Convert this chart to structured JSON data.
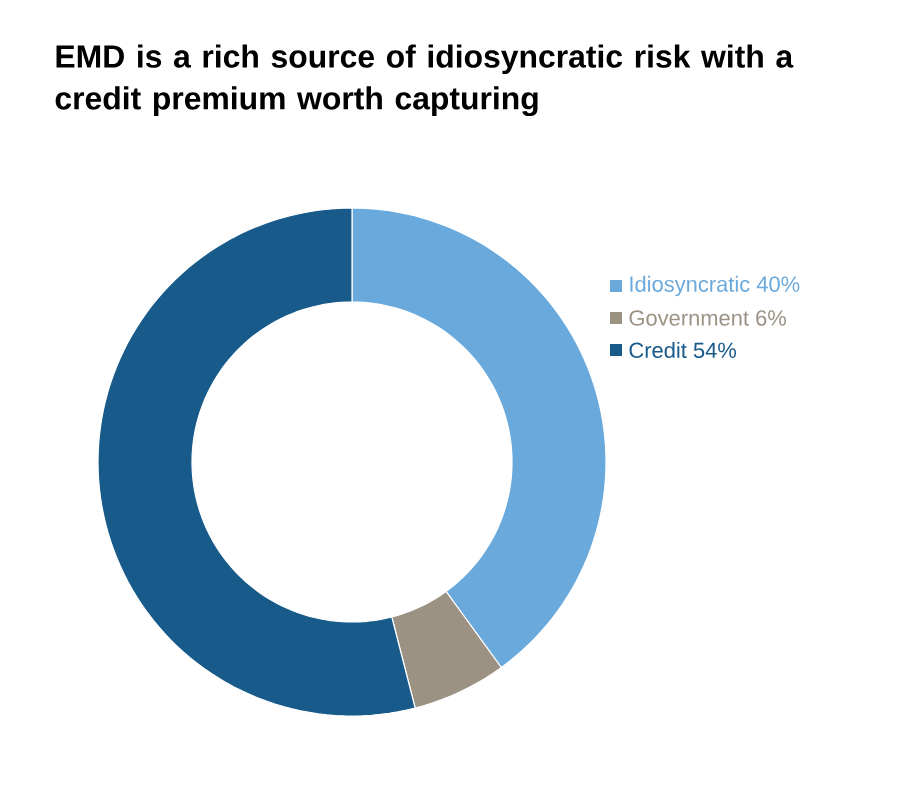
{
  "chart_data": {
    "type": "donut",
    "title": "EMD is a rich source of idiosyncratic risk with a credit premium worth capturing",
    "categories": [
      "Idiosyncratic",
      "Government",
      "Credit"
    ],
    "values": [
      40,
      6,
      54
    ],
    "value_labels": [
      "40%",
      "6%",
      "54%"
    ],
    "colors": [
      "#6aa9dc",
      "#9b9284",
      "#185a8a"
    ],
    "legend": "right"
  }
}
